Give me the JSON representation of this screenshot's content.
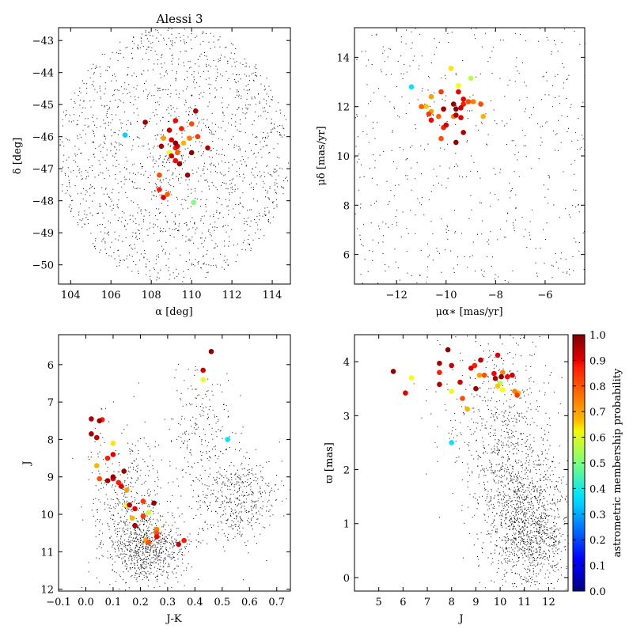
{
  "figure_title": "Alessi 3",
  "colors": {
    "background": "#ffffff",
    "field": "#000000",
    "axis": "#000000"
  },
  "colorbar": {
    "label": "astrometric membership probability",
    "ticks": [
      "0.0",
      "0.1",
      "0.2",
      "0.3",
      "0.4",
      "0.5",
      "0.6",
      "0.7",
      "0.8",
      "0.9",
      "1.0"
    ],
    "colormap": "jet"
  },
  "chart_data": [
    {
      "type": "scatter",
      "title": "Alessi 3",
      "xlabel": "α [deg]",
      "ylabel": "δ [deg]",
      "xlim": [
        103.4,
        114.9
      ],
      "ylim": [
        -50.6,
        -42.6
      ],
      "yreverse": false,
      "xticks": [
        104,
        106,
        108,
        110,
        112,
        114
      ],
      "yticks": [
        -50,
        -49,
        -48,
        -47,
        -46,
        -45,
        -44,
        -43
      ],
      "xtick_labels": [
        "104",
        "106",
        "108",
        "110",
        "112",
        "114"
      ],
      "ytick_labels": [
        "−50",
        "−49",
        "−48",
        "−47",
        "−46",
        "−45",
        "−44",
        "−43"
      ],
      "field": {
        "kind": "disk",
        "center": [
          109.1,
          -46.55
        ],
        "radius": [
          5.8,
          4.0
        ],
        "count": 1700
      },
      "members": [
        {
          "x": 107.7,
          "y": -45.55,
          "p": 0.98
        },
        {
          "x": 106.7,
          "y": -45.95,
          "p": 0.33
        },
        {
          "x": 108.5,
          "y": -46.3,
          "p": 0.95
        },
        {
          "x": 108.9,
          "y": -45.8,
          "p": 0.93
        },
        {
          "x": 109.2,
          "y": -45.5,
          "p": 0.88
        },
        {
          "x": 109.5,
          "y": -45.75,
          "p": 0.85
        },
        {
          "x": 110.2,
          "y": -45.2,
          "p": 0.96
        },
        {
          "x": 110.0,
          "y": -45.6,
          "p": 0.8
        },
        {
          "x": 108.6,
          "y": -46.05,
          "p": 0.72
        },
        {
          "x": 109.0,
          "y": -46.1,
          "p": 0.9
        },
        {
          "x": 109.3,
          "y": -46.3,
          "p": 0.91
        },
        {
          "x": 109.6,
          "y": -46.2,
          "p": 0.7
        },
        {
          "x": 109.9,
          "y": -46.05,
          "p": 0.75
        },
        {
          "x": 110.3,
          "y": -46.0,
          "p": 0.82
        },
        {
          "x": 110.8,
          "y": -46.35,
          "p": 0.95
        },
        {
          "x": 109.0,
          "y": -46.6,
          "p": 0.92
        },
        {
          "x": 109.2,
          "y": -46.75,
          "p": 0.87
        },
        {
          "x": 109.4,
          "y": -46.85,
          "p": 0.97
        },
        {
          "x": 108.9,
          "y": -46.5,
          "p": 0.6
        },
        {
          "x": 110.0,
          "y": -46.5,
          "p": 0.99
        },
        {
          "x": 109.3,
          "y": -46.5,
          "p": 0.78
        },
        {
          "x": 108.4,
          "y": -47.2,
          "p": 0.8
        },
        {
          "x": 109.8,
          "y": -47.2,
          "p": 0.97
        },
        {
          "x": 108.4,
          "y": -47.65,
          "p": 0.85
        },
        {
          "x": 108.6,
          "y": -47.9,
          "p": 0.9
        },
        {
          "x": 108.8,
          "y": -47.8,
          "p": 0.78
        },
        {
          "x": 110.1,
          "y": -48.05,
          "p": 0.5
        },
        {
          "x": 109.2,
          "y": -46.2,
          "p": 0.99
        },
        {
          "x": 109.2,
          "y": -46.35,
          "p": 0.85
        }
      ]
    },
    {
      "type": "scatter",
      "title": "",
      "xlabel": "μα∗ [mas/yr]",
      "ylabel": "μδ [mas/yr]",
      "xlim": [
        -13.7,
        -4.4
      ],
      "ylim": [
        4.8,
        15.2
      ],
      "yreverse": false,
      "xticks": [
        -12,
        -10,
        -8,
        -6
      ],
      "yticks": [
        6,
        8,
        10,
        12,
        14
      ],
      "xtick_labels": [
        "−12",
        "−10",
        "−8",
        "−6"
      ],
      "ytick_labels": [
        "6",
        "8",
        "10",
        "12",
        "14"
      ],
      "field": {
        "kind": "uniform",
        "count": 550
      },
      "members": [
        {
          "x": -9.8,
          "y": 13.55,
          "p": 0.65
        },
        {
          "x": -9.0,
          "y": 13.15,
          "p": 0.55
        },
        {
          "x": -11.4,
          "y": 12.8,
          "p": 0.35
        },
        {
          "x": -9.5,
          "y": 12.85,
          "p": 0.62
        },
        {
          "x": -10.2,
          "y": 12.6,
          "p": 0.82
        },
        {
          "x": -9.5,
          "y": 12.6,
          "p": 0.9
        },
        {
          "x": -10.6,
          "y": 12.4,
          "p": 0.72
        },
        {
          "x": -9.3,
          "y": 12.3,
          "p": 0.9
        },
        {
          "x": -11.0,
          "y": 12.0,
          "p": 0.78
        },
        {
          "x": -10.8,
          "y": 12.0,
          "p": 0.68
        },
        {
          "x": -9.7,
          "y": 12.1,
          "p": 0.97
        },
        {
          "x": -9.3,
          "y": 12.1,
          "p": 0.85
        },
        {
          "x": -9.1,
          "y": 12.2,
          "p": 0.8
        },
        {
          "x": -8.9,
          "y": 12.2,
          "p": 0.75
        },
        {
          "x": -8.6,
          "y": 12.1,
          "p": 0.8
        },
        {
          "x": -10.1,
          "y": 11.9,
          "p": 0.97
        },
        {
          "x": -9.6,
          "y": 11.9,
          "p": 0.99
        },
        {
          "x": -9.4,
          "y": 11.95,
          "p": 0.93
        },
        {
          "x": -10.7,
          "y": 11.7,
          "p": 0.82
        },
        {
          "x": -10.3,
          "y": 11.6,
          "p": 0.78
        },
        {
          "x": -9.6,
          "y": 11.65,
          "p": 0.95
        },
        {
          "x": -9.4,
          "y": 11.55,
          "p": 0.9
        },
        {
          "x": -10.6,
          "y": 11.45,
          "p": 0.88
        },
        {
          "x": -8.5,
          "y": 11.6,
          "p": 0.7
        },
        {
          "x": -10.0,
          "y": 11.25,
          "p": 0.92
        },
        {
          "x": -10.1,
          "y": 11.15,
          "p": 0.85
        },
        {
          "x": -9.3,
          "y": 10.95,
          "p": 0.96
        },
        {
          "x": -10.2,
          "y": 10.7,
          "p": 0.8
        },
        {
          "x": -9.6,
          "y": 10.55,
          "p": 0.98
        },
        {
          "x": -9.7,
          "y": 11.6,
          "p": 0.75
        },
        {
          "x": -10.1,
          "y": 11.9,
          "p": 0.88
        },
        {
          "x": -10.6,
          "y": 11.8,
          "p": 0.72
        }
      ]
    },
    {
      "type": "scatter",
      "title": "",
      "xlabel": "J-K",
      "ylabel": "J",
      "xlim": [
        -0.1,
        0.75
      ],
      "ylim": [
        5.2,
        12.05
      ],
      "yreverse": true,
      "xticks": [
        -0.1,
        0.0,
        0.1,
        0.2,
        0.3,
        0.4,
        0.5,
        0.6,
        0.7
      ],
      "yticks": [
        6,
        7,
        8,
        9,
        10,
        11,
        12
      ],
      "xtick_labels": [
        "−0.1",
        "0.0",
        "0.1",
        "0.2",
        "0.3",
        "0.4",
        "0.5",
        "0.6",
        "0.7"
      ],
      "ytick_labels": [
        "6",
        "7",
        "8",
        "9",
        "10",
        "11",
        "12"
      ],
      "field": {
        "kind": "clumps",
        "count": 1800,
        "clumps": [
          {
            "c": [
              0.22,
              10.9
            ],
            "s": [
              0.07,
              0.5
            ],
            "w": 0.45
          },
          {
            "c": [
              0.55,
              9.6
            ],
            "s": [
              0.07,
              0.6
            ],
            "w": 0.25
          },
          {
            "c": [
              0.42,
              7.9
            ],
            "s": [
              0.06,
              0.9
            ],
            "w": 0.12
          },
          {
            "c": [
              0.15,
              9.3
            ],
            "s": [
              0.07,
              0.9
            ],
            "w": 0.18
          }
        ]
      },
      "members": [
        {
          "x": 0.46,
          "y": 5.65,
          "p": 0.99
        },
        {
          "x": 0.43,
          "y": 6.15,
          "p": 0.92
        },
        {
          "x": 0.43,
          "y": 6.4,
          "p": 0.6
        },
        {
          "x": 0.02,
          "y": 7.45,
          "p": 0.95
        },
        {
          "x": 0.05,
          "y": 7.5,
          "p": 0.98
        },
        {
          "x": 0.06,
          "y": 7.47,
          "p": 0.85
        },
        {
          "x": 0.02,
          "y": 7.85,
          "p": 0.96
        },
        {
          "x": 0.04,
          "y": 7.95,
          "p": 0.93
        },
        {
          "x": 0.1,
          "y": 8.1,
          "p": 0.65
        },
        {
          "x": 0.52,
          "y": 8.0,
          "p": 0.35
        },
        {
          "x": 0.08,
          "y": 8.5,
          "p": 0.85
        },
        {
          "x": 0.1,
          "y": 8.4,
          "p": 0.9
        },
        {
          "x": 0.04,
          "y": 8.7,
          "p": 0.7
        },
        {
          "x": 0.14,
          "y": 8.85,
          "p": 0.97
        },
        {
          "x": 0.05,
          "y": 9.05,
          "p": 0.8
        },
        {
          "x": 0.1,
          "y": 9.05,
          "p": 0.88
        },
        {
          "x": 0.1,
          "y": 9.0,
          "p": 0.97
        },
        {
          "x": 0.08,
          "y": 9.1,
          "p": 0.96
        },
        {
          "x": 0.12,
          "y": 9.15,
          "p": 0.85
        },
        {
          "x": 0.13,
          "y": 9.25,
          "p": 0.9
        },
        {
          "x": 0.15,
          "y": 9.35,
          "p": 0.72
        },
        {
          "x": 0.21,
          "y": 9.65,
          "p": 0.82
        },
        {
          "x": 0.25,
          "y": 9.7,
          "p": 0.98
        },
        {
          "x": 0.16,
          "y": 9.75,
          "p": 0.95
        },
        {
          "x": 0.15,
          "y": 9.75,
          "p": 0.62
        },
        {
          "x": 0.18,
          "y": 9.85,
          "p": 0.9
        },
        {
          "x": 0.23,
          "y": 9.95,
          "p": 0.58
        },
        {
          "x": 0.21,
          "y": 10.05,
          "p": 0.82
        },
        {
          "x": 0.17,
          "y": 10.1,
          "p": 0.7
        },
        {
          "x": 0.18,
          "y": 10.3,
          "p": 0.95
        },
        {
          "x": 0.26,
          "y": 10.4,
          "p": 0.75
        },
        {
          "x": 0.26,
          "y": 10.5,
          "p": 0.8
        },
        {
          "x": 0.26,
          "y": 10.6,
          "p": 0.88
        },
        {
          "x": 0.23,
          "y": 10.75,
          "p": 0.8
        },
        {
          "x": 0.22,
          "y": 10.7,
          "p": 0.72
        },
        {
          "x": 0.36,
          "y": 10.7,
          "p": 0.85
        },
        {
          "x": 0.34,
          "y": 10.8,
          "p": 0.92
        }
      ]
    },
    {
      "type": "scatter",
      "title": "",
      "xlabel": "J",
      "ylabel": "ϖ [mas]",
      "xlim": [
        4.0,
        12.8
      ],
      "ylim": [
        -0.25,
        4.5
      ],
      "yreverse": false,
      "xticks": [
        5,
        6,
        7,
        8,
        9,
        10,
        11,
        12
      ],
      "yticks": [
        0,
        1,
        2,
        3,
        4
      ],
      "xtick_labels": [
        "5",
        "6",
        "7",
        "8",
        "9",
        "10",
        "11",
        "12"
      ],
      "ytick_labels": [
        "0",
        "1",
        "2",
        "3",
        "4"
      ],
      "field": {
        "kind": "clumps",
        "count": 1900,
        "clumps": [
          {
            "c": [
              11.3,
              0.8
            ],
            "s": [
              0.8,
              0.5
            ],
            "w": 0.45
          },
          {
            "c": [
              10.6,
              1.6
            ],
            "s": [
              0.9,
              0.7
            ],
            "w": 0.3
          },
          {
            "c": [
              10.0,
              2.9
            ],
            "s": [
              1.2,
              0.9
            ],
            "w": 0.25
          }
        ]
      },
      "members": [
        {
          "x": 5.6,
          "y": 3.82,
          "p": 0.98
        },
        {
          "x": 6.1,
          "y": 3.42,
          "p": 0.9
        },
        {
          "x": 6.35,
          "y": 3.7,
          "p": 0.62
        },
        {
          "x": 7.5,
          "y": 3.97,
          "p": 0.96
        },
        {
          "x": 7.5,
          "y": 3.8,
          "p": 0.85
        },
        {
          "x": 7.5,
          "y": 3.58,
          "p": 0.95
        },
        {
          "x": 7.85,
          "y": 4.22,
          "p": 0.99
        },
        {
          "x": 8.0,
          "y": 3.93,
          "p": 0.93
        },
        {
          "x": 8.0,
          "y": 3.45,
          "p": 0.6
        },
        {
          "x": 8.35,
          "y": 3.62,
          "p": 0.92
        },
        {
          "x": 8.45,
          "y": 3.32,
          "p": 0.8
        },
        {
          "x": 8.65,
          "y": 3.12,
          "p": 0.7
        },
        {
          "x": 8.8,
          "y": 3.88,
          "p": 0.9
        },
        {
          "x": 8.95,
          "y": 3.93,
          "p": 0.85
        },
        {
          "x": 9.0,
          "y": 3.5,
          "p": 0.97
        },
        {
          "x": 9.15,
          "y": 3.75,
          "p": 0.72
        },
        {
          "x": 9.2,
          "y": 4.03,
          "p": 0.95
        },
        {
          "x": 9.35,
          "y": 3.75,
          "p": 0.8
        },
        {
          "x": 9.75,
          "y": 3.78,
          "p": 0.88
        },
        {
          "x": 9.8,
          "y": 3.69,
          "p": 0.96
        },
        {
          "x": 9.9,
          "y": 4.12,
          "p": 0.9
        },
        {
          "x": 9.9,
          "y": 3.55,
          "p": 0.68
        },
        {
          "x": 10.0,
          "y": 3.6,
          "p": 0.55
        },
        {
          "x": 10.1,
          "y": 3.48,
          "p": 0.62
        },
        {
          "x": 10.05,
          "y": 3.72,
          "p": 0.99
        },
        {
          "x": 10.3,
          "y": 3.72,
          "p": 0.88
        },
        {
          "x": 10.5,
          "y": 3.75,
          "p": 0.92
        },
        {
          "x": 10.6,
          "y": 3.45,
          "p": 0.75
        },
        {
          "x": 10.7,
          "y": 3.38,
          "p": 0.82
        },
        {
          "x": 10.75,
          "y": 3.42,
          "p": 0.7
        },
        {
          "x": 8.0,
          "y": 2.5,
          "p": 0.35
        },
        {
          "x": 10.1,
          "y": 3.8,
          "p": 0.75
        }
      ]
    }
  ]
}
